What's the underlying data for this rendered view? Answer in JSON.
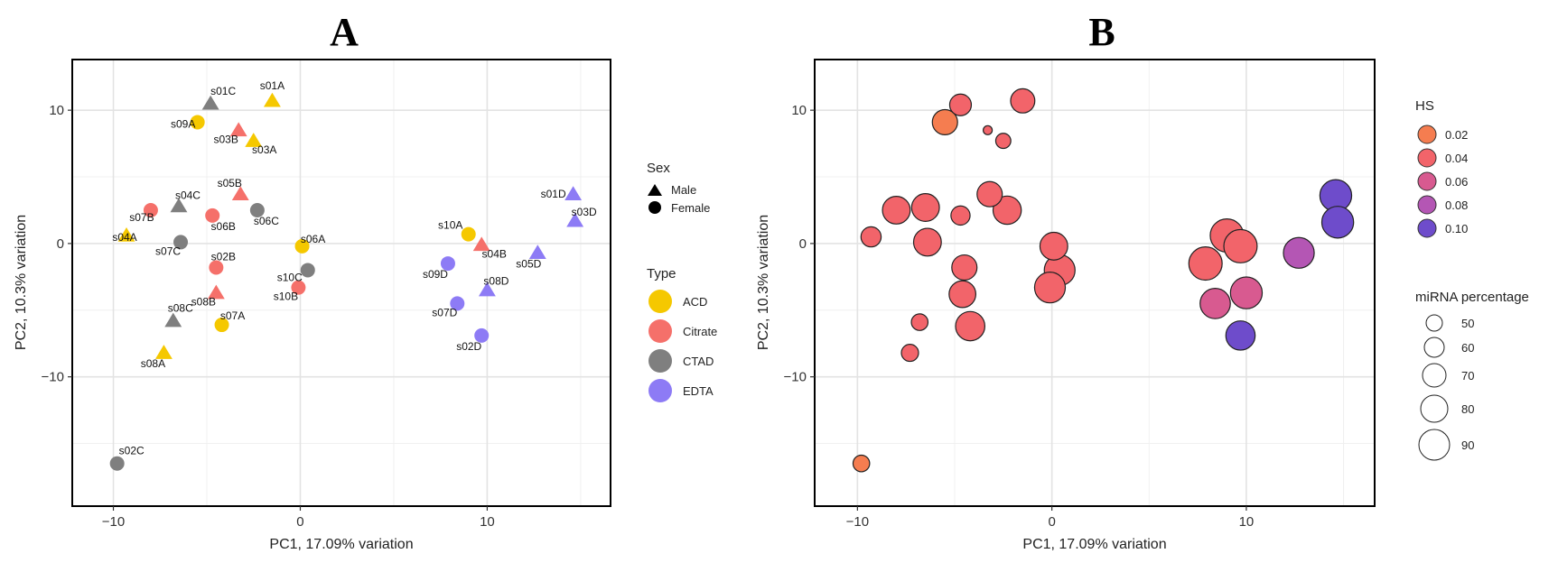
{
  "figure": {
    "panel_a_letter": "A",
    "panel_b_letter": "B"
  },
  "legend_a": {
    "sex_title": "Sex",
    "sex_items": [
      "Male",
      "Female"
    ],
    "type_title": "Type",
    "type_items": [
      {
        "label": "ACD",
        "color": "#F5C800"
      },
      {
        "label": "Citrate",
        "color": "#F5706A"
      },
      {
        "label": "CTAD",
        "color": "#7F7F7F"
      },
      {
        "label": "EDTA",
        "color": "#8D7BF5"
      }
    ]
  },
  "legend_b": {
    "hs_title": "HS",
    "hs_items": [
      {
        "label": "0.02",
        "color": "#F57D50"
      },
      {
        "label": "0.04",
        "color": "#F2646A"
      },
      {
        "label": "0.06",
        "color": "#D85A90"
      },
      {
        "label": "0.08",
        "color": "#B456B4"
      },
      {
        "label": "0.10",
        "color": "#6E4CCB"
      }
    ],
    "size_title": "miRNA percentage",
    "size_items": [
      "50",
      "60",
      "70",
      "80",
      "90"
    ]
  },
  "chart_data": [
    {
      "type": "scatter",
      "title": "A",
      "xlabel": "PC1, 17.09% variation",
      "ylabel": "PC2, 10.3% variation",
      "xlim": [
        -12.2,
        16.6
      ],
      "ylim": [
        -19.7,
        13.8
      ],
      "xticks": [
        -10,
        0,
        10
      ],
      "yticks": [
        -10,
        0,
        10
      ],
      "xtick_labels": [
        "−10",
        "0",
        "10"
      ],
      "ytick_labels": [
        "−10",
        "0",
        "10"
      ],
      "grid": true,
      "points": [
        {
          "label": "s01A",
          "x": -1.5,
          "y": 10.7,
          "sex": "Male",
          "type": "ACD"
        },
        {
          "label": "s03A",
          "x": -2.5,
          "y": 7.7,
          "sex": "Male",
          "type": "ACD"
        },
        {
          "label": "s04A",
          "x": -9.3,
          "y": 0.6,
          "sex": "Male",
          "type": "ACD"
        },
        {
          "label": "s08A",
          "x": -7.3,
          "y": -8.2,
          "sex": "Male",
          "type": "ACD"
        },
        {
          "label": "s09A",
          "x": -5.5,
          "y": 9.1,
          "sex": "Female",
          "type": "ACD"
        },
        {
          "label": "s06A",
          "x": 0.1,
          "y": -0.2,
          "sex": "Female",
          "type": "ACD"
        },
        {
          "label": "s07A",
          "x": -4.2,
          "y": -6.1,
          "sex": "Female",
          "type": "ACD"
        },
        {
          "label": "s10A",
          "x": 9.0,
          "y": 0.7,
          "sex": "Female",
          "type": "ACD"
        },
        {
          "label": "s03B",
          "x": -3.3,
          "y": 8.5,
          "sex": "Male",
          "type": "Citrate"
        },
        {
          "label": "s05B",
          "x": -3.2,
          "y": 3.7,
          "sex": "Male",
          "type": "Citrate"
        },
        {
          "label": "s08B",
          "x": -4.5,
          "y": -3.7,
          "sex": "Male",
          "type": "Citrate"
        },
        {
          "label": "s04B",
          "x": 9.7,
          "y": -0.1,
          "sex": "Male",
          "type": "Citrate"
        },
        {
          "label": "s07B",
          "x": -8.0,
          "y": 2.5,
          "sex": "Female",
          "type": "Citrate"
        },
        {
          "label": "s06B",
          "x": -4.7,
          "y": 2.1,
          "sex": "Female",
          "type": "Citrate"
        },
        {
          "label": "s02B",
          "x": -4.5,
          "y": -1.8,
          "sex": "Female",
          "type": "Citrate"
        },
        {
          "label": "s10B",
          "x": -0.1,
          "y": -3.3,
          "sex": "Female",
          "type": "Citrate"
        },
        {
          "label": "s01C",
          "x": -4.8,
          "y": 10.5,
          "sex": "Male",
          "type": "CTAD"
        },
        {
          "label": "s04C",
          "x": -6.5,
          "y": 2.8,
          "sex": "Male",
          "type": "CTAD"
        },
        {
          "label": "s08C",
          "x": -6.8,
          "y": -5.8,
          "sex": "Male",
          "type": "CTAD"
        },
        {
          "label": "s06C",
          "x": -2.3,
          "y": 2.5,
          "sex": "Female",
          "type": "CTAD"
        },
        {
          "label": "s07C",
          "x": -6.4,
          "y": 0.1,
          "sex": "Female",
          "type": "CTAD"
        },
        {
          "label": "s10C",
          "x": 0.4,
          "y": -2.0,
          "sex": "Female",
          "type": "CTAD"
        },
        {
          "label": "s02C",
          "x": -9.8,
          "y": -16.5,
          "sex": "Female",
          "type": "CTAD"
        },
        {
          "label": "s01D",
          "x": 14.6,
          "y": 3.7,
          "sex": "Male",
          "type": "EDTA"
        },
        {
          "label": "s03D",
          "x": 14.7,
          "y": 1.7,
          "sex": "Male",
          "type": "EDTA"
        },
        {
          "label": "s05D",
          "x": 12.7,
          "y": -0.7,
          "sex": "Male",
          "type": "EDTA"
        },
        {
          "label": "s08D",
          "x": 10.0,
          "y": -3.5,
          "sex": "Male",
          "type": "EDTA"
        },
        {
          "label": "s09D",
          "x": 7.9,
          "y": -1.5,
          "sex": "Female",
          "type": "EDTA"
        },
        {
          "label": "s07D",
          "x": 8.4,
          "y": -4.5,
          "sex": "Female",
          "type": "EDTA"
        },
        {
          "label": "s02D",
          "x": 9.7,
          "y": -6.9,
          "sex": "Female",
          "type": "EDTA"
        }
      ]
    },
    {
      "type": "scatter",
      "title": "B",
      "xlabel": "PC1, 17.09% variation",
      "ylabel": "PC2, 10.3% variation",
      "xlim": [
        -12.2,
        16.6
      ],
      "ylim": [
        -19.7,
        13.8
      ],
      "xticks": [
        -10,
        0,
        10
      ],
      "yticks": [
        -10,
        0,
        10
      ],
      "xtick_labels": [
        "−10",
        "0",
        "10"
      ],
      "ytick_labels": [
        "−10",
        "0",
        "10"
      ],
      "grid": true,
      "points": [
        {
          "x": -1.5,
          "y": 10.7,
          "hs": 0.04,
          "mirna": 70
        },
        {
          "x": -4.7,
          "y": 10.4,
          "hs": 0.04,
          "mirna": 65
        },
        {
          "x": -5.5,
          "y": 9.1,
          "hs": 0.02,
          "mirna": 72
        },
        {
          "x": -3.3,
          "y": 8.5,
          "hs": 0.04,
          "mirna": 40
        },
        {
          "x": -2.5,
          "y": 7.7,
          "hs": 0.04,
          "mirna": 52
        },
        {
          "x": -3.2,
          "y": 3.7,
          "hs": 0.04,
          "mirna": 72
        },
        {
          "x": -8.0,
          "y": 2.5,
          "hs": 0.04,
          "mirna": 77
        },
        {
          "x": -6.5,
          "y": 2.7,
          "hs": 0.04,
          "mirna": 77
        },
        {
          "x": -4.7,
          "y": 2.1,
          "hs": 0.04,
          "mirna": 60
        },
        {
          "x": -2.3,
          "y": 2.5,
          "hs": 0.04,
          "mirna": 78
        },
        {
          "x": -9.3,
          "y": 0.5,
          "hs": 0.04,
          "mirna": 62
        },
        {
          "x": -6.4,
          "y": 0.1,
          "hs": 0.04,
          "mirna": 77
        },
        {
          "x": 0.1,
          "y": -0.2,
          "hs": 0.04,
          "mirna": 77
        },
        {
          "x": -4.5,
          "y": -1.8,
          "hs": 0.04,
          "mirna": 72
        },
        {
          "x": 0.4,
          "y": -2.0,
          "hs": 0.04,
          "mirna": 83
        },
        {
          "x": -0.1,
          "y": -3.3,
          "hs": 0.04,
          "mirna": 83
        },
        {
          "x": -4.6,
          "y": -3.8,
          "hs": 0.04,
          "mirna": 75
        },
        {
          "x": -4.2,
          "y": -6.2,
          "hs": 0.04,
          "mirna": 80
        },
        {
          "x": -6.8,
          "y": -5.9,
          "hs": 0.04,
          "mirna": 55
        },
        {
          "x": -7.3,
          "y": -8.2,
          "hs": 0.04,
          "mirna": 56
        },
        {
          "x": -9.8,
          "y": -16.5,
          "hs": 0.02,
          "mirna": 55
        },
        {
          "x": 7.9,
          "y": -1.5,
          "hs": 0.04,
          "mirna": 88
        },
        {
          "x": 9.0,
          "y": 0.6,
          "hs": 0.04,
          "mirna": 88
        },
        {
          "x": 9.7,
          "y": -0.2,
          "hs": 0.04,
          "mirna": 88
        },
        {
          "x": 8.4,
          "y": -4.5,
          "hs": 0.06,
          "mirna": 82
        },
        {
          "x": 10.0,
          "y": -3.7,
          "hs": 0.06,
          "mirna": 85
        },
        {
          "x": 9.7,
          "y": -6.9,
          "hs": 0.1,
          "mirna": 80
        },
        {
          "x": 12.7,
          "y": -0.7,
          "hs": 0.08,
          "mirna": 83
        },
        {
          "x": 14.6,
          "y": 3.6,
          "hs": 0.1,
          "mirna": 85
        },
        {
          "x": 14.7,
          "y": 1.6,
          "hs": 0.1,
          "mirna": 85
        }
      ]
    }
  ]
}
